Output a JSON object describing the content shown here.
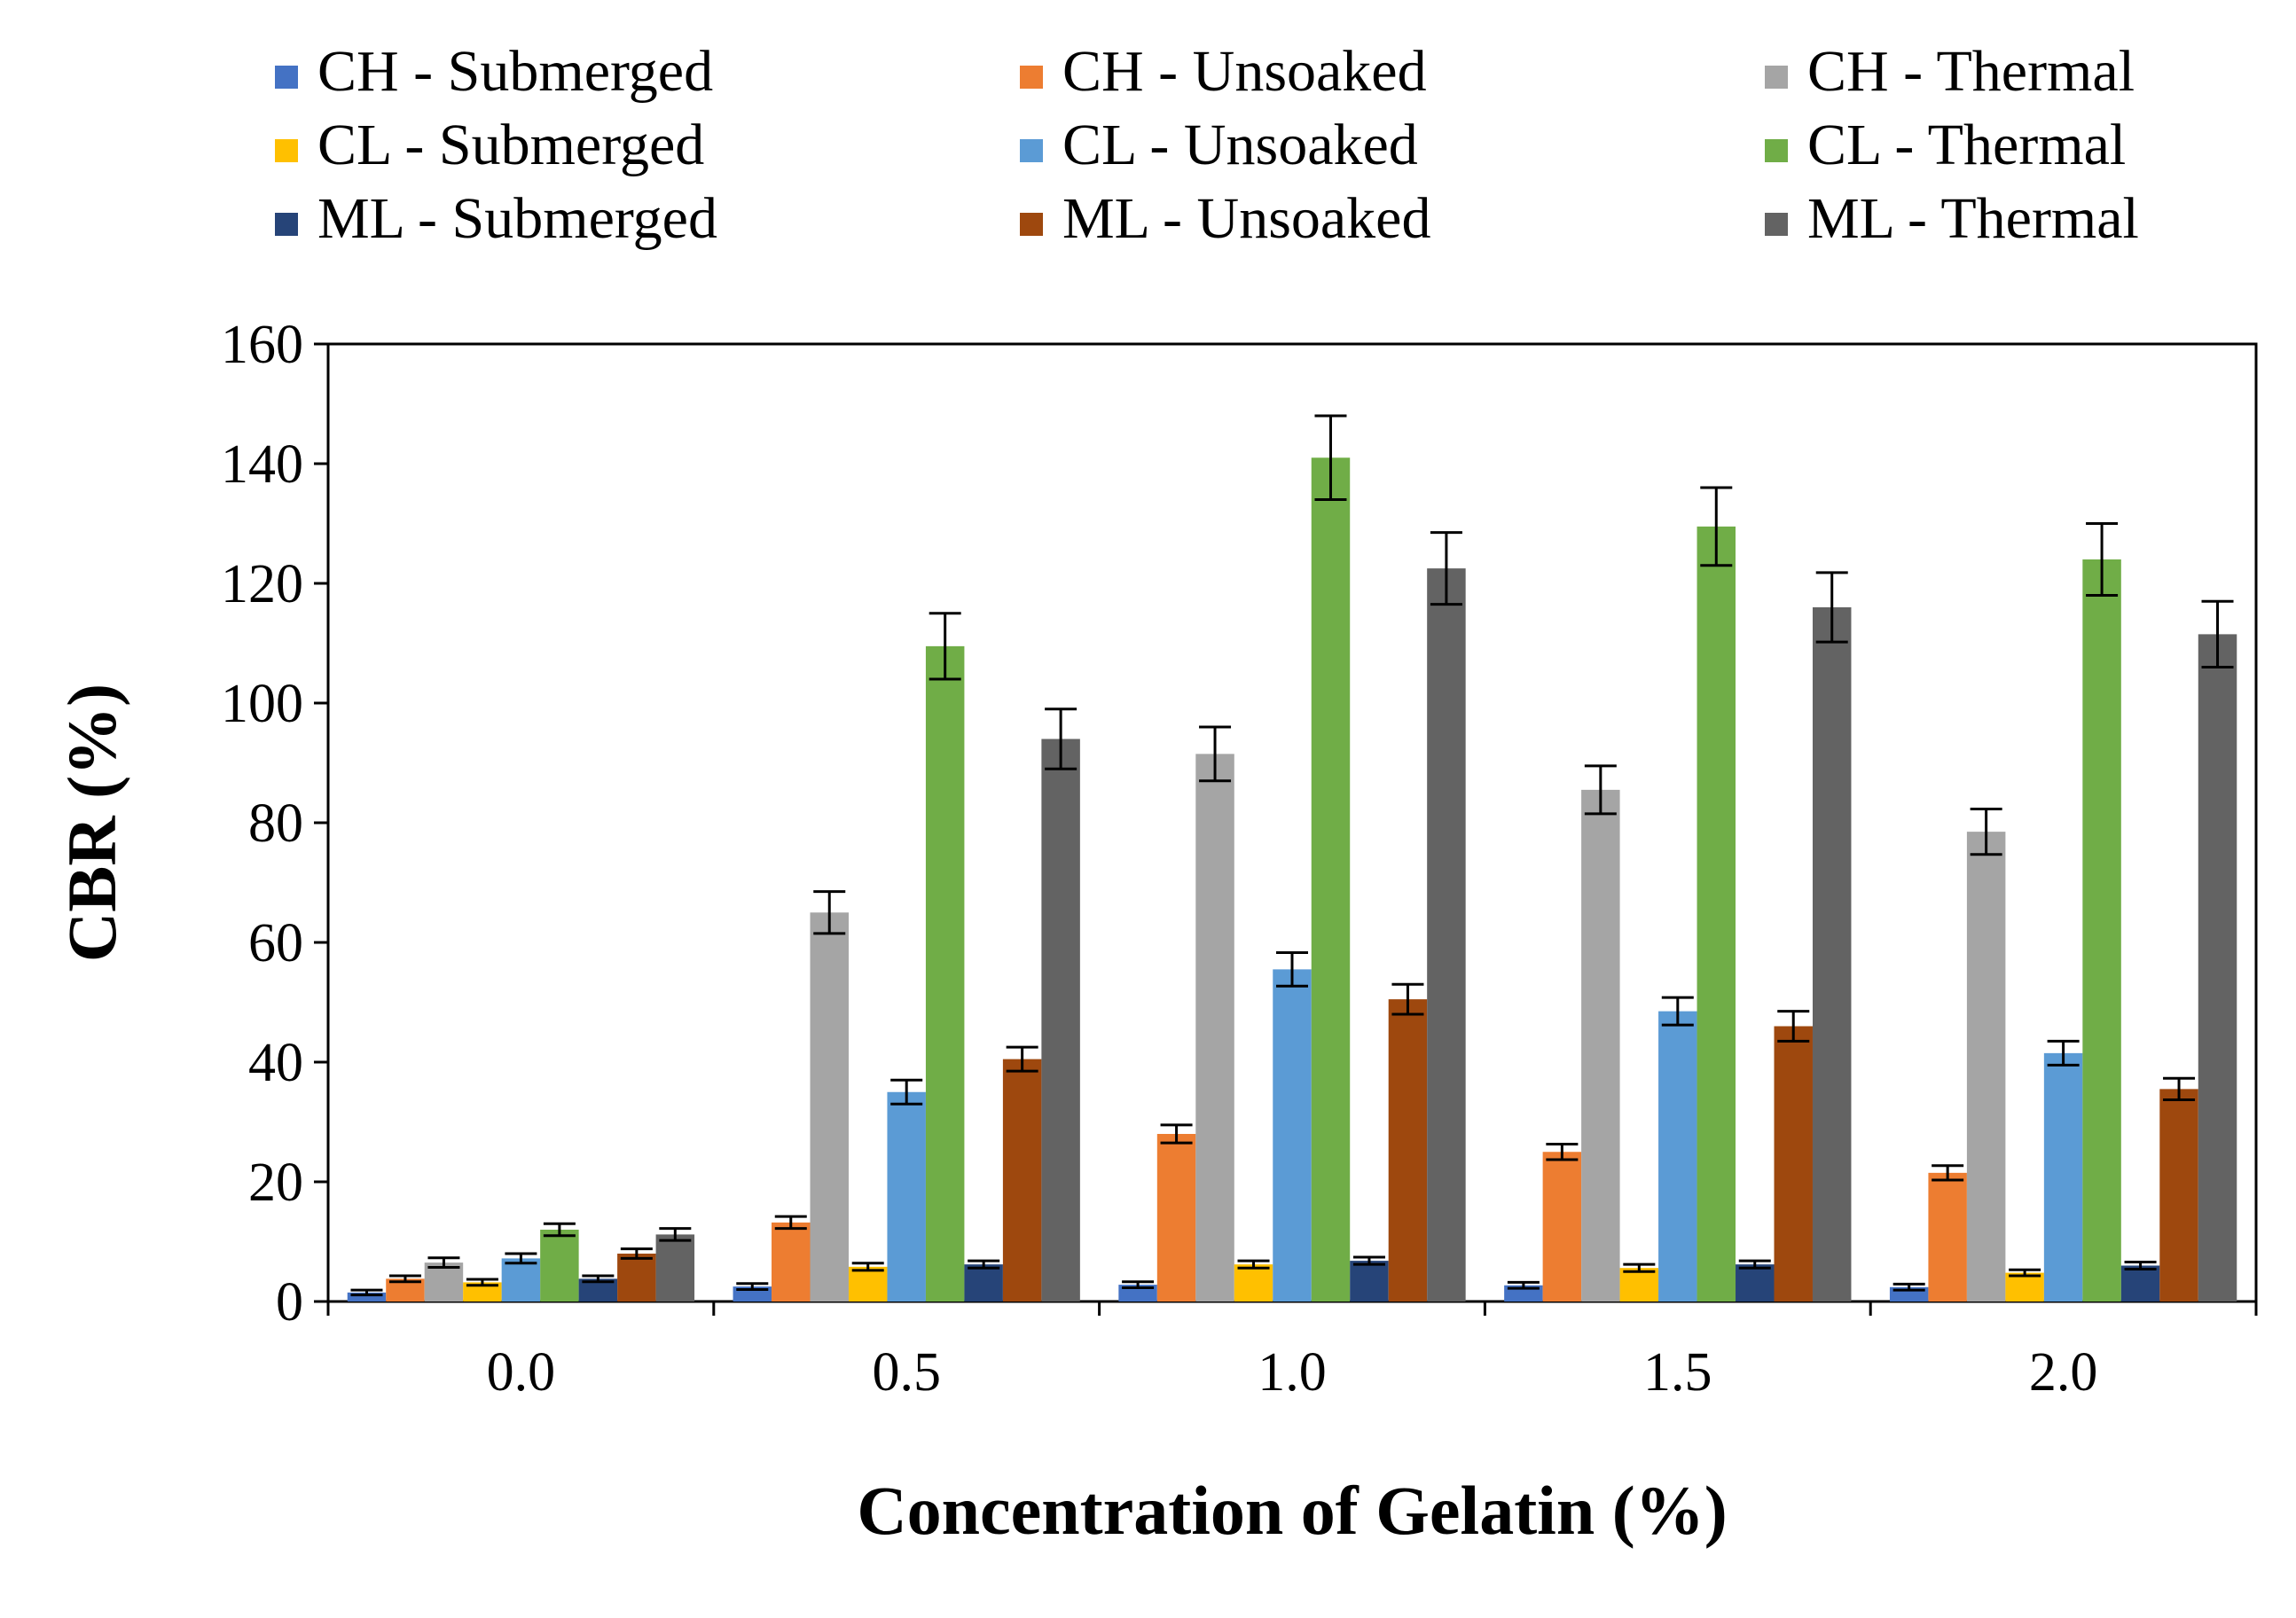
{
  "chart_data": {
    "type": "bar",
    "title": "",
    "xlabel": "Concentration of Gelatin (%)",
    "ylabel": "CBR (%)",
    "ylim": [
      0,
      160
    ],
    "yticks": [
      "0",
      "20",
      "40",
      "60",
      "80",
      "100",
      "120",
      "140",
      "160"
    ],
    "categories": [
      "0.0",
      "0.5",
      "1.0",
      "1.5",
      "2.0"
    ],
    "grid": false,
    "legend_position": "top",
    "series": [
      {
        "name": "CH - Submerged",
        "color": "#4472C4",
        "values": [
          1.5,
          2.5,
          2.8,
          2.7,
          2.4
        ],
        "errors": [
          0.4,
          0.5,
          0.5,
          0.5,
          0.5
        ]
      },
      {
        "name": "CH - Unsoaked",
        "color": "#ED7D31",
        "values": [
          3.8,
          13.2,
          28.0,
          25.0,
          21.5
        ],
        "errors": [
          0.5,
          1.0,
          1.5,
          1.3,
          1.2
        ]
      },
      {
        "name": "CH - Thermal",
        "color": "#A5A5A5",
        "values": [
          6.5,
          65.0,
          91.5,
          85.5,
          78.5
        ],
        "errors": [
          0.8,
          3.5,
          4.5,
          4.0,
          3.8
        ]
      },
      {
        "name": "CL - Submerged",
        "color": "#FFC000",
        "values": [
          3.2,
          5.8,
          6.2,
          5.6,
          4.8
        ],
        "errors": [
          0.5,
          0.6,
          0.6,
          0.6,
          0.5
        ]
      },
      {
        "name": "CL - Unsoaked",
        "color": "#5B9BD5",
        "values": [
          7.2,
          35.0,
          55.5,
          48.5,
          41.5
        ],
        "errors": [
          0.8,
          2.0,
          2.8,
          2.3,
          2.0
        ]
      },
      {
        "name": "CL - Thermal",
        "color": "#70AD47",
        "values": [
          12.0,
          109.5,
          141.0,
          129.5,
          124.0
        ],
        "errors": [
          1.0,
          5.5,
          7.0,
          6.5,
          6.0
        ]
      },
      {
        "name": "ML - Submerged",
        "color": "#264478",
        "values": [
          3.8,
          6.2,
          6.8,
          6.2,
          6.0
        ],
        "errors": [
          0.5,
          0.6,
          0.6,
          0.6,
          0.6
        ]
      },
      {
        "name": "ML - Unsoaked",
        "color": "#9E480E",
        "values": [
          8.0,
          40.5,
          50.5,
          46.0,
          35.5
        ],
        "errors": [
          0.8,
          2.0,
          2.5,
          2.5,
          1.8
        ]
      },
      {
        "name": "ML - Thermal",
        "color": "#636363",
        "values": [
          11.2,
          94.0,
          122.5,
          116.0,
          111.5
        ],
        "errors": [
          1.0,
          5.0,
          6.0,
          5.8,
          5.5
        ]
      }
    ]
  }
}
